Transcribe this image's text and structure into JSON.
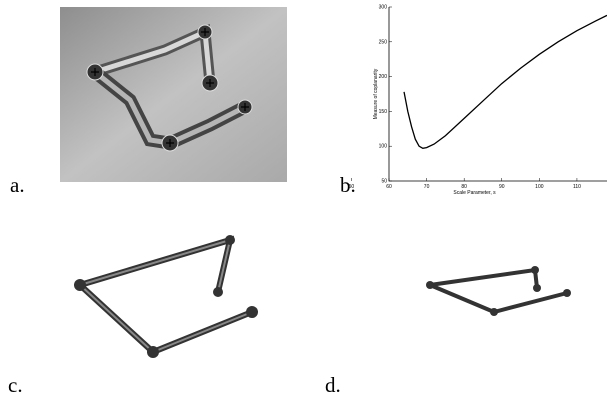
{
  "panels": [
    {
      "label": "a."
    },
    {
      "label": "b."
    },
    {
      "label": "c."
    },
    {
      "label": "d."
    }
  ],
  "chart_data": {
    "type": "line",
    "xlabel": "Scale Parameter, s",
    "ylabel": "Measure of coplanarity",
    "x": [
      64,
      65,
      66,
      67,
      68,
      69,
      70,
      72,
      75,
      80,
      85,
      90,
      95,
      100,
      105,
      110,
      115,
      118
    ],
    "series": [
      {
        "color": "#000000",
        "values": [
          178,
          150,
          128,
          110,
          100,
          97,
          98,
          103,
          115,
          140,
          165,
          190,
          212,
          232,
          250,
          266,
          280,
          288
        ]
      }
    ],
    "xlim": [
      60,
      118
    ],
    "xticks": [
      50,
      60,
      70,
      80,
      90,
      100,
      110
    ],
    "ylim": [
      50,
      300
    ],
    "yticks": [
      50,
      100,
      150,
      200,
      250,
      300
    ]
  }
}
